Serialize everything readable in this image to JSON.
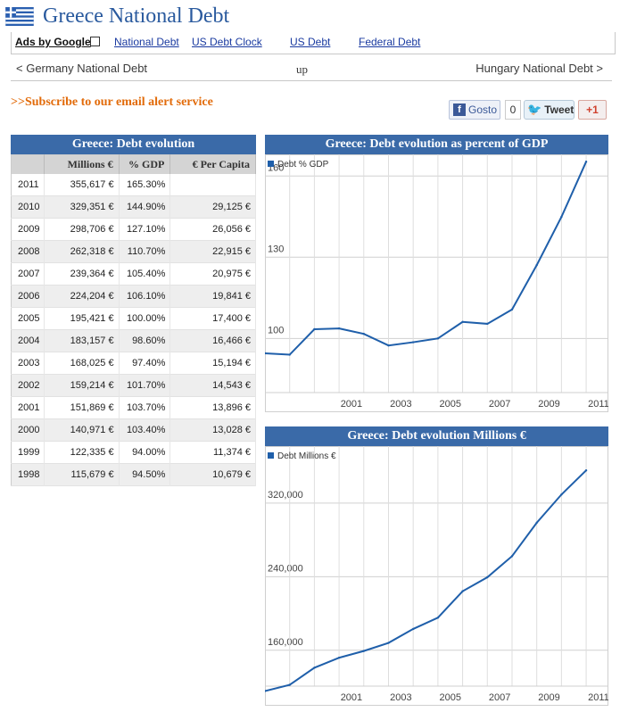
{
  "header": {
    "title": "Greece National Debt"
  },
  "ads": {
    "ads_by_google": "Ads by Google",
    "links": [
      "National Debt",
      "US Debt Clock",
      "US Debt",
      "Federal Debt"
    ]
  },
  "nav": {
    "prev": "< Germany National Debt",
    "up": "up",
    "next": "Hungary National Debt >"
  },
  "subscribe": ">>Subscribe to our email alert service",
  "social": {
    "facebook": "Gosto",
    "facebook_count": "0",
    "tweet": "Tweet",
    "gplus": "+1"
  },
  "table": {
    "title": "Greece: Debt evolution",
    "columns": [
      "",
      "Millions €",
      "% GDP",
      "€ Per Capita"
    ],
    "rows": [
      [
        "2011",
        "355,617 €",
        "165.30%",
        ""
      ],
      [
        "2010",
        "329,351 €",
        "144.90%",
        "29,125 €"
      ],
      [
        "2009",
        "298,706 €",
        "127.10%",
        "26,056 €"
      ],
      [
        "2008",
        "262,318 €",
        "110.70%",
        "22,915 €"
      ],
      [
        "2007",
        "239,364 €",
        "105.40%",
        "20,975 €"
      ],
      [
        "2006",
        "224,204 €",
        "106.10%",
        "19,841 €"
      ],
      [
        "2005",
        "195,421 €",
        "100.00%",
        "17,400 €"
      ],
      [
        "2004",
        "183,157 €",
        "98.60%",
        "16,466 €"
      ],
      [
        "2003",
        "168,025 €",
        "97.40%",
        "15,194 €"
      ],
      [
        "2002",
        "159,214 €",
        "101.70%",
        "14,543 €"
      ],
      [
        "2001",
        "151,869 €",
        "103.70%",
        "13,896 €"
      ],
      [
        "2000",
        "140,971 €",
        "103.40%",
        "13,028 €"
      ],
      [
        "1999",
        "122,335 €",
        "94.00%",
        "11,374 €"
      ],
      [
        "1998",
        "115,679 €",
        "94.50%",
        "10,679 €"
      ]
    ]
  },
  "colors": {
    "accent": "#3a6aa8",
    "line": "#1f5faa",
    "subscribe": "#e26b0a"
  },
  "chart_data": [
    {
      "type": "line",
      "title": "Greece: Debt evolution as percent of GDP",
      "legend": "top-left",
      "series": [
        {
          "name": "Debt % GDP",
          "x": [
            1998,
            1999,
            2000,
            2001,
            2002,
            2003,
            2004,
            2005,
            2006,
            2007,
            2008,
            2009,
            2010,
            2011
          ],
          "values": [
            94.5,
            94.0,
            103.4,
            103.7,
            101.7,
            97.4,
            98.6,
            100.0,
            106.1,
            105.4,
            110.7,
            127.1,
            144.9,
            165.3
          ]
        }
      ],
      "xticks": [
        "2001",
        "2003",
        "2005",
        "2007",
        "2009",
        "2011"
      ],
      "yticks": [
        "100",
        "130",
        "160"
      ],
      "ylim": [
        80,
        168
      ],
      "xlim": [
        1998,
        2011.9
      ],
      "grid": true
    },
    {
      "type": "line",
      "title": "Greece: Debt evolution Millions €",
      "legend": "top-left",
      "series": [
        {
          "name": "Debt Millions €",
          "x": [
            1998,
            1999,
            2000,
            2001,
            2002,
            2003,
            2004,
            2005,
            2006,
            2007,
            2008,
            2009,
            2010,
            2011
          ],
          "values": [
            115679,
            122335,
            140971,
            151869,
            159214,
            168025,
            183157,
            195421,
            224204,
            239364,
            262318,
            298706,
            329351,
            355617
          ]
        }
      ],
      "xticks": [
        "2001",
        "2003",
        "2005",
        "2007",
        "2009",
        "2011"
      ],
      "yticks": [
        "160,000",
        "240,000",
        "320,000"
      ],
      "ylim": [
        121000,
        382000
      ],
      "xlim": [
        1998,
        2011.9
      ],
      "grid": true
    }
  ]
}
